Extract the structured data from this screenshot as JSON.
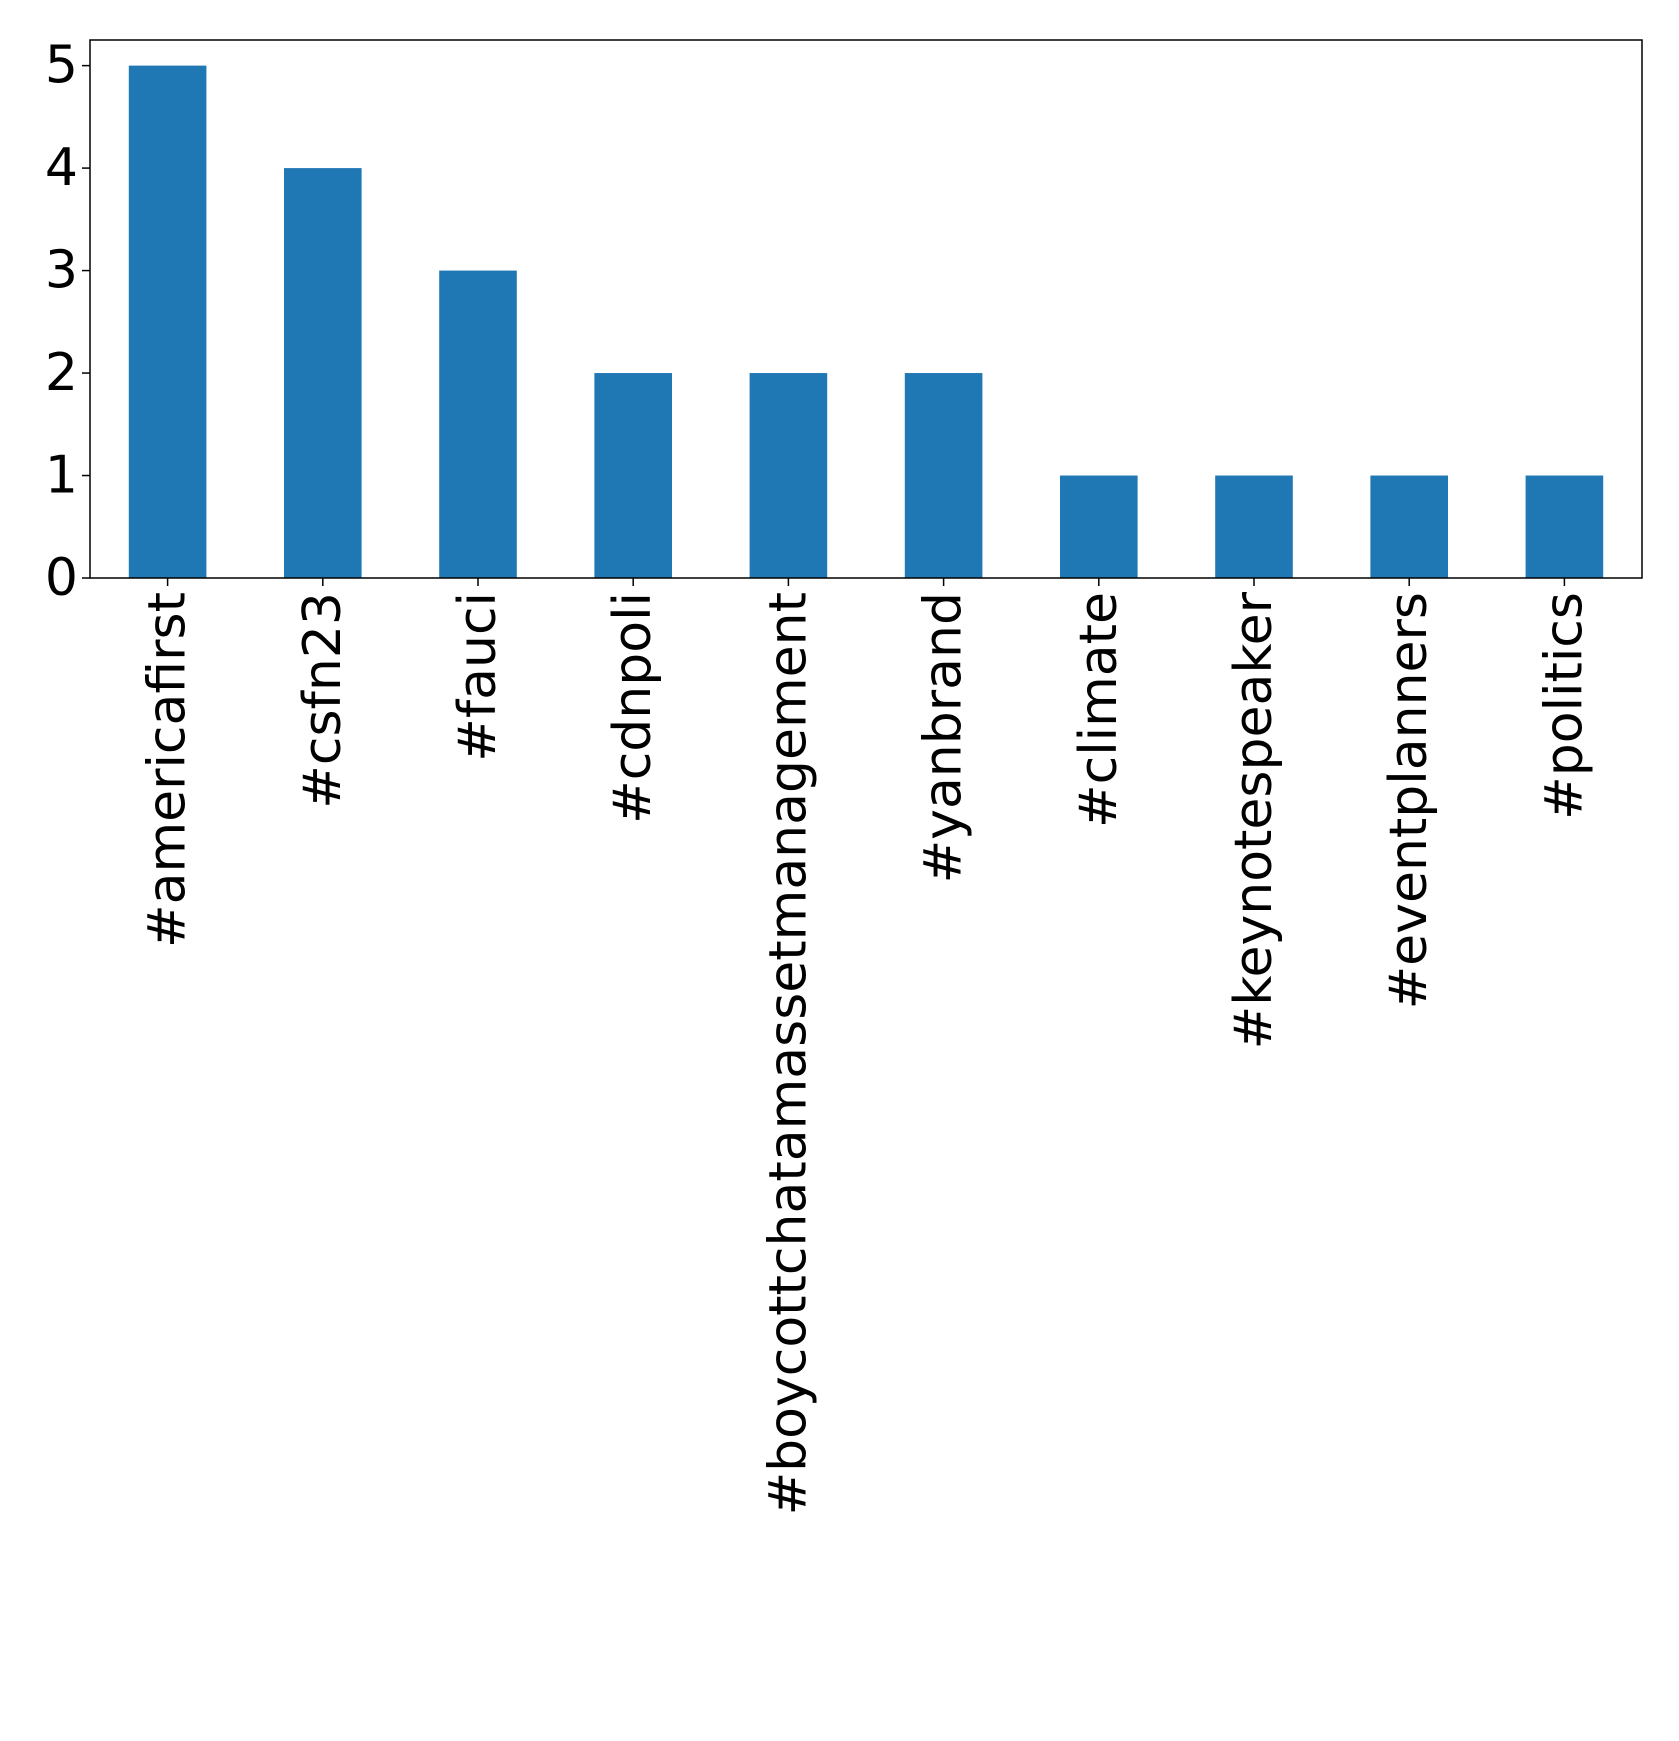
{
  "chart_data": {
    "type": "bar",
    "title": "",
    "xlabel": "",
    "ylabel": "",
    "categories": [
      "#americafirst",
      "#csfn23",
      "#fauci",
      "#cdnpoli",
      "#boycottchatamassetmanagement",
      "#yanbrand",
      "#climate",
      "#keynotespeaker",
      "#eventplanners",
      "#politics"
    ],
    "values": [
      5,
      4,
      3,
      2,
      2,
      2,
      1,
      1,
      1,
      1
    ],
    "ylim": [
      0,
      5.25
    ],
    "yticks": [
      "0",
      "1",
      "2",
      "3",
      "4",
      "5"
    ],
    "grid": false,
    "legend": "none",
    "bar_color": "#1f77b4"
  }
}
